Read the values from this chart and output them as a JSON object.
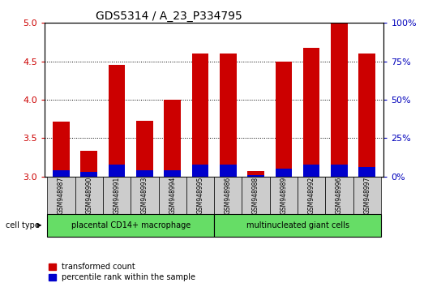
{
  "title": "GDS5314 / A_23_P334795",
  "samples": [
    "GSM948987",
    "GSM948990",
    "GSM948991",
    "GSM948993",
    "GSM948994",
    "GSM948995",
    "GSM948986",
    "GSM948988",
    "GSM948989",
    "GSM948992",
    "GSM948996",
    "GSM948997"
  ],
  "transformed_count": [
    3.72,
    3.33,
    4.45,
    3.73,
    4.0,
    4.6,
    4.6,
    3.07,
    4.5,
    4.68,
    5.0,
    4.6
  ],
  "percentile_rank": [
    4,
    3,
    8,
    4,
    4,
    8,
    8,
    1,
    5,
    8,
    8,
    6
  ],
  "group1_label": "placental CD14+ macrophage",
  "group2_label": "multinucleated giant cells",
  "group1_count": 6,
  "group2_count": 6,
  "ylim_left": [
    3.0,
    5.0
  ],
  "ylim_right": [
    0,
    100
  ],
  "yticks_left": [
    3.0,
    3.5,
    4.0,
    4.5,
    5.0
  ],
  "yticks_right": [
    0,
    25,
    50,
    75,
    100
  ],
  "bar_width": 0.6,
  "red_color": "#cc0000",
  "blue_color": "#0000cc",
  "group_bg": "#66dd66",
  "sample_bg": "#cccccc",
  "legend_red_label": "transformed count",
  "legend_blue_label": "percentile rank within the sample",
  "cell_type_label": "cell type",
  "ylabel_left_color": "#cc0000",
  "ylabel_right_color": "#0000bb"
}
